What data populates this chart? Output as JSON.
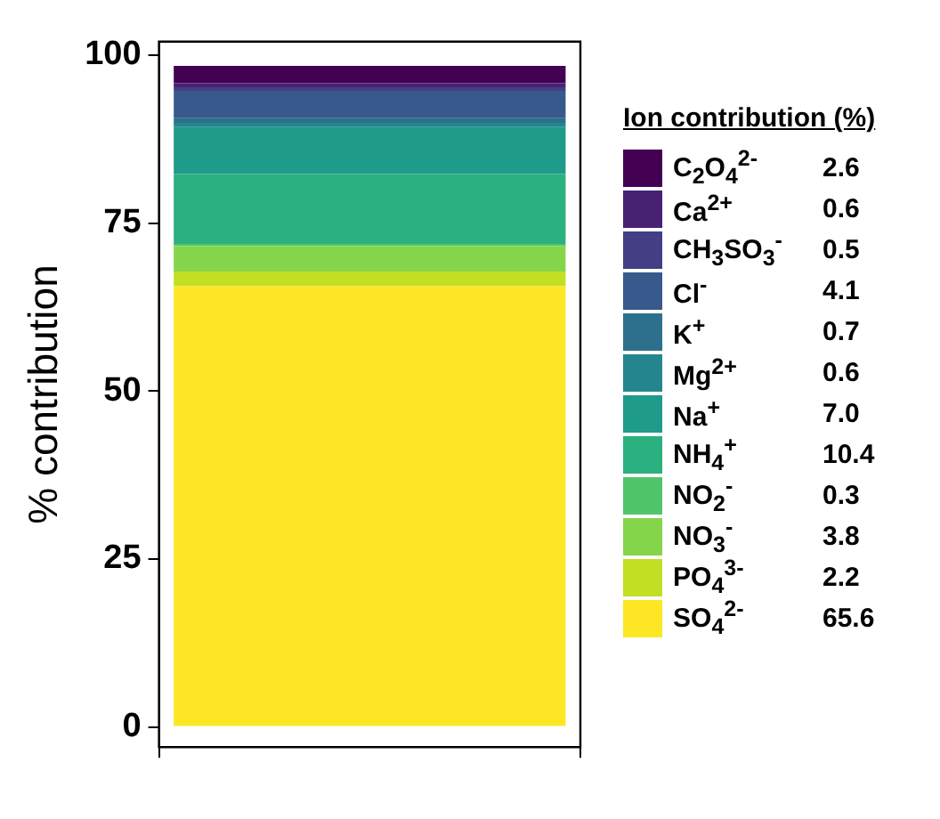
{
  "chart_data": {
    "type": "bar",
    "ylabel": "% contribution",
    "legend_title": "Ion contribution (%)",
    "categories": [
      null
    ],
    "stacked": true,
    "ylim": [
      -3,
      102
    ],
    "yticks": [
      0,
      25,
      50,
      75,
      100
    ],
    "legend": "right",
    "annotations": [
      "2.6",
      "0.6",
      "0.5",
      "4.1",
      "0.7",
      "0.6",
      "7.0",
      "10.4",
      "0.3",
      "3.8",
      "2.2",
      "65.6"
    ],
    "series": [
      {
        "name": "SO$_{4}$$^{2-}$",
        "color": "#fde725",
        "values": [
          65.6
        ]
      },
      {
        "name": "PO$_{4}$$^{3-}$",
        "color": "#c2df23",
        "values": [
          2.2
        ]
      },
      {
        "name": "NO$_{3}$$^{-}$",
        "color": "#85d54a",
        "values": [
          3.8
        ]
      },
      {
        "name": "NO$_{2}$$^{-}$",
        "color": "#51c56a",
        "values": [
          0.3
        ]
      },
      {
        "name": "NH$_{4}$$^{+}$",
        "color": "#2bb07f",
        "values": [
          10.4
        ]
      },
      {
        "name": "Na$^{+}$",
        "color": "#1e9b8a",
        "values": [
          7.0
        ]
      },
      {
        "name": "Mg$^{2+}$",
        "color": "#25858e",
        "values": [
          0.6
        ]
      },
      {
        "name": "K$^{+}$",
        "color": "#2d708e",
        "values": [
          0.7
        ]
      },
      {
        "name": "Cl$^{-}$",
        "color": "#38598c",
        "values": [
          4.1
        ]
      },
      {
        "name": "CH$_{3}$SO$_{3}$$^{-}$",
        "color": "#433e85",
        "values": [
          0.5
        ]
      },
      {
        "name": "Ca$^{2+}$",
        "color": "#482173",
        "values": [
          0.6
        ]
      },
      {
        "name": "C$_{2}$O$_{4}$$^{2-}$",
        "color": "#440154",
        "values": [
          2.6
        ]
      }
    ]
  }
}
